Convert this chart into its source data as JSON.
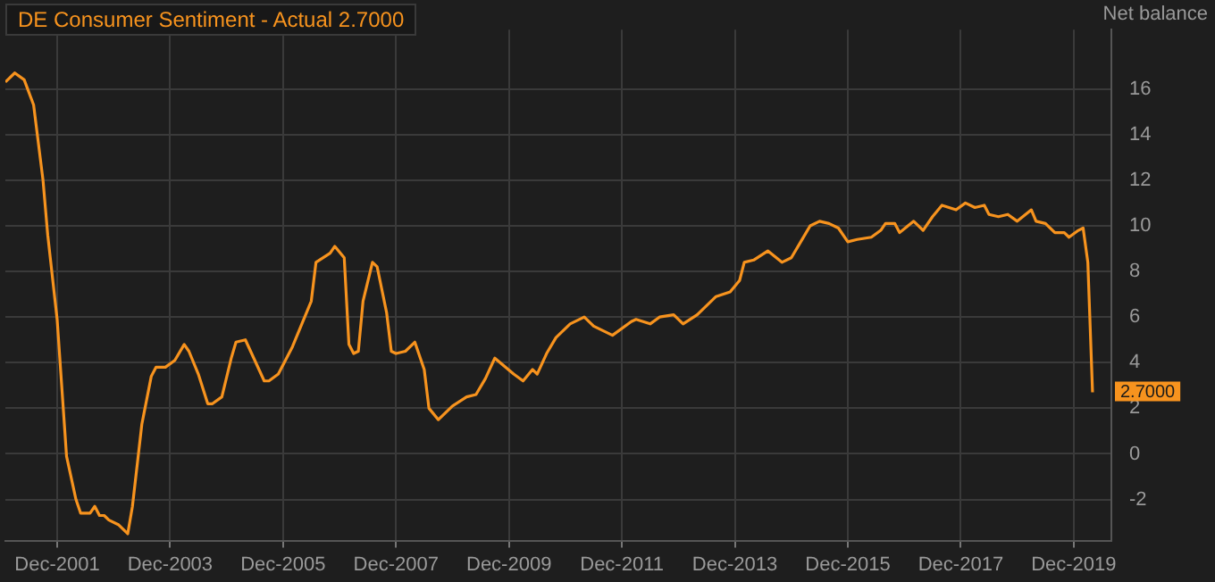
{
  "chart_data": {
    "type": "line",
    "title": "DE Consumer Sentiment - Actual 2.7000",
    "ylabel": "Net balance",
    "x": [
      "2001-01",
      "2001-03",
      "2001-05",
      "2001-07",
      "2001-09",
      "2001-10",
      "2001-12",
      "2002-02",
      "2002-04",
      "2002-05",
      "2002-07",
      "2002-08",
      "2002-09",
      "2002-10",
      "2002-11",
      "2003-01",
      "2003-03",
      "2003-04",
      "2003-06",
      "2003-08",
      "2003-09",
      "2003-11",
      "2004-01",
      "2004-03",
      "2004-04",
      "2004-06",
      "2004-08",
      "2004-09",
      "2004-11",
      "2005-01",
      "2005-02",
      "2005-04",
      "2005-06",
      "2005-08",
      "2005-09",
      "2005-11",
      "2006-02",
      "2006-04",
      "2006-06",
      "2006-07",
      "2006-10",
      "2006-11",
      "2007-01",
      "2007-02",
      "2007-03",
      "2007-04",
      "2007-05",
      "2007-07",
      "2007-08",
      "2007-10",
      "2007-11",
      "2007-12",
      "2008-02",
      "2008-04",
      "2008-06",
      "2008-07",
      "2008-09",
      "2008-12",
      "2009-03",
      "2009-05",
      "2009-07",
      "2009-09",
      "2010-01",
      "2010-03",
      "2010-05",
      "2010-06",
      "2010-08",
      "2010-10",
      "2011-01",
      "2011-04",
      "2011-06",
      "2011-10",
      "2012-02",
      "2012-03",
      "2012-06",
      "2012-08",
      "2012-11",
      "2013-01",
      "2013-04",
      "2013-08",
      "2013-11",
      "2014-01",
      "2014-02",
      "2014-04",
      "2014-07",
      "2014-10",
      "2014-12",
      "2015-02",
      "2015-04",
      "2015-06",
      "2015-08",
      "2015-10",
      "2015-12",
      "2016-02",
      "2016-05",
      "2016-07",
      "2016-08",
      "2016-10",
      "2016-11",
      "2017-02",
      "2017-04",
      "2017-06",
      "2017-08",
      "2017-11",
      "2018-01",
      "2018-03",
      "2018-05",
      "2018-06",
      "2018-08",
      "2018-10",
      "2018-12",
      "2019-03",
      "2019-04",
      "2019-06",
      "2019-08",
      "2019-10",
      "2019-11",
      "2020-01",
      "2020-02",
      "2020-03",
      "2020-04"
    ],
    "series": [
      {
        "color": "#f7931e",
        "values": [
          16.3,
          16.7,
          16.4,
          15.3,
          12.0,
          9.6,
          5.9,
          -0.1,
          -2.0,
          -2.6,
          -2.6,
          -2.3,
          -2.7,
          -2.7,
          -2.9,
          -3.1,
          -3.5,
          -2.3,
          1.3,
          3.4,
          3.8,
          3.8,
          4.1,
          4.8,
          4.5,
          3.5,
          2.2,
          2.2,
          2.5,
          4.2,
          4.9,
          5.0,
          4.1,
          3.2,
          3.2,
          3.5,
          4.7,
          5.7,
          6.7,
          8.4,
          8.8,
          9.1,
          8.6,
          4.8,
          4.4,
          4.5,
          6.7,
          8.4,
          8.2,
          6.2,
          4.5,
          4.4,
          4.5,
          4.9,
          3.7,
          2.0,
          1.5,
          2.1,
          2.5,
          2.6,
          3.3,
          4.2,
          3.5,
          3.2,
          3.7,
          3.5,
          4.4,
          5.1,
          5.7,
          6.0,
          5.6,
          5.2,
          5.8,
          5.9,
          5.7,
          6.0,
          6.1,
          5.7,
          6.1,
          6.9,
          7.1,
          7.6,
          8.4,
          8.5,
          8.9,
          8.4,
          8.6,
          9.3,
          10.0,
          10.2,
          10.1,
          9.9,
          9.3,
          9.4,
          9.5,
          9.8,
          10.1,
          10.1,
          9.7,
          10.2,
          9.8,
          10.4,
          10.9,
          10.7,
          11.0,
          10.8,
          10.9,
          10.5,
          10.4,
          10.5,
          10.2,
          10.7,
          10.2,
          10.1,
          9.7,
          9.7,
          9.5,
          9.8,
          9.9,
          8.4,
          2.7
        ]
      }
    ],
    "xlim": [
      "2001-01",
      "2020-08"
    ],
    "xticks": [
      {
        "value": "2001-12",
        "label": "Dec-2001"
      },
      {
        "value": "2003-12",
        "label": "Dec-2003"
      },
      {
        "value": "2005-12",
        "label": "Dec-2005"
      },
      {
        "value": "2007-12",
        "label": "Dec-2007"
      },
      {
        "value": "2009-12",
        "label": "Dec-2009"
      },
      {
        "value": "2011-12",
        "label": "Dec-2011"
      },
      {
        "value": "2013-12",
        "label": "Dec-2013"
      },
      {
        "value": "2015-12",
        "label": "Dec-2015"
      },
      {
        "value": "2017-12",
        "label": "Dec-2017"
      },
      {
        "value": "2019-12",
        "label": "Dec-2019"
      }
    ],
    "ylim": [
      -3.8,
      18.6
    ],
    "yticks": [
      -2,
      0,
      2,
      4,
      6,
      8,
      10,
      12,
      14,
      16
    ],
    "annotations": [
      {
        "text": "2.7000",
        "x": "2020-04",
        "y": 2.7
      }
    ],
    "grid": true,
    "legend": false,
    "marker": "none",
    "line_style": "solid"
  }
}
